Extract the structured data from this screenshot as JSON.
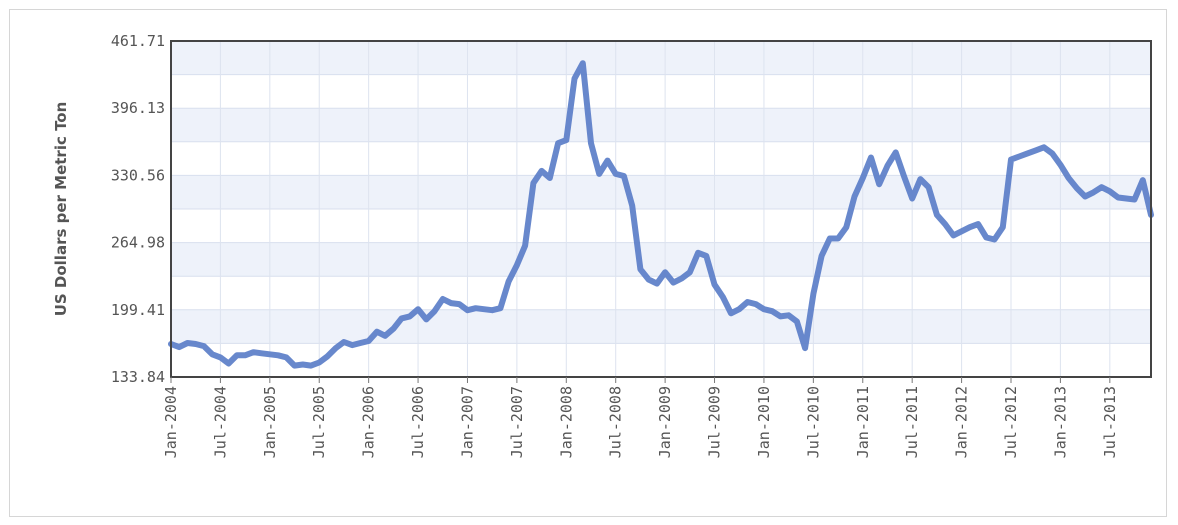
{
  "chart_data": {
    "type": "line",
    "title": "",
    "xlabel": "",
    "ylabel": "US Dollars per Metric Ton",
    "y_ticks": [
      "133.84",
      "199.41",
      "264.98",
      "330.56",
      "396.13",
      "461.71"
    ],
    "ylim": [
      133.84,
      461.71
    ],
    "x_ticks": [
      "Jan-2004",
      "Jul-2004",
      "Jan-2005",
      "Jul-2005",
      "Jan-2006",
      "Jul-2006",
      "Jan-2007",
      "Jul-2007",
      "Jan-2008",
      "Jul-2008",
      "Jan-2009",
      "Jul-2009",
      "Jan-2010",
      "Jul-2010",
      "Jan-2011",
      "Jul-2011",
      "Jan-2012",
      "Jul-2012",
      "Jan-2013",
      "Jul-2013"
    ],
    "xlim": [
      "Jan-2004",
      "Dec-2013"
    ],
    "grid": true,
    "legend": "none",
    "series": [
      {
        "color": "#5b7ec8",
        "x": [
          "Jan-2004",
          "Feb-2004",
          "Mar-2004",
          "Apr-2004",
          "May-2004",
          "Jun-2004",
          "Jul-2004",
          "Aug-2004",
          "Sep-2004",
          "Oct-2004",
          "Nov-2004",
          "Dec-2004",
          "Jan-2005",
          "Feb-2005",
          "Mar-2005",
          "Apr-2005",
          "May-2005",
          "Jun-2005",
          "Jul-2005",
          "Aug-2005",
          "Sep-2005",
          "Oct-2005",
          "Nov-2005",
          "Dec-2005",
          "Jan-2006",
          "Feb-2006",
          "Mar-2006",
          "Apr-2006",
          "May-2006",
          "Jun-2006",
          "Jul-2006",
          "Aug-2006",
          "Sep-2006",
          "Oct-2006",
          "Nov-2006",
          "Dec-2006",
          "Jan-2007",
          "Feb-2007",
          "Mar-2007",
          "Apr-2007",
          "May-2007",
          "Jun-2007",
          "Jul-2007",
          "Aug-2007",
          "Sep-2007",
          "Oct-2007",
          "Nov-2007",
          "Dec-2007",
          "Jan-2008",
          "Feb-2008",
          "Mar-2008",
          "Apr-2008",
          "May-2008",
          "Jun-2008",
          "Jul-2008",
          "Aug-2008",
          "Sep-2008",
          "Oct-2008",
          "Nov-2008",
          "Dec-2008",
          "Jan-2009",
          "Feb-2009",
          "Mar-2009",
          "Apr-2009",
          "May-2009",
          "Jun-2009",
          "Jul-2009",
          "Aug-2009",
          "Sep-2009",
          "Oct-2009",
          "Nov-2009",
          "Dec-2009",
          "Jan-2010",
          "Feb-2010",
          "Mar-2010",
          "Apr-2010",
          "May-2010",
          "Jun-2010",
          "Jul-2010",
          "Aug-2010",
          "Sep-2010",
          "Oct-2010",
          "Nov-2010",
          "Dec-2010",
          "Jan-2011",
          "Feb-2011",
          "Mar-2011",
          "Apr-2011",
          "May-2011",
          "Jun-2011",
          "Jul-2011",
          "Aug-2011",
          "Sep-2011",
          "Oct-2011",
          "Nov-2011",
          "Dec-2011",
          "Jan-2012",
          "Feb-2012",
          "Mar-2012",
          "Apr-2012",
          "May-2012",
          "Jun-2012",
          "Jul-2012",
          "Aug-2012",
          "Sep-2012",
          "Oct-2012",
          "Nov-2012",
          "Dec-2012",
          "Jan-2013",
          "Feb-2013",
          "Mar-2013",
          "Apr-2013",
          "May-2013",
          "Jun-2013",
          "Jul-2013",
          "Aug-2013",
          "Sep-2013",
          "Oct-2013",
          "Nov-2013",
          "Dec-2013"
        ],
        "values": [
          166,
          163,
          167,
          166,
          164,
          156,
          153,
          147,
          155,
          155,
          158,
          157,
          156,
          155,
          153,
          145,
          146,
          145,
          148,
          154,
          162,
          168,
          165,
          167,
          169,
          178,
          174,
          181,
          191,
          193,
          200,
          190,
          198,
          210,
          206,
          205,
          199,
          201,
          200,
          199,
          201,
          227,
          243,
          262,
          323,
          335,
          328,
          362,
          365,
          425,
          440,
          362,
          332,
          345,
          332,
          330,
          301,
          239,
          229,
          225,
          236,
          226,
          230,
          236,
          255,
          252,
          224,
          212,
          196,
          200,
          207,
          205,
          200,
          198,
          193,
          194,
          188,
          162,
          215,
          252,
          269,
          269,
          280,
          310,
          328,
          348,
          322,
          340,
          353,
          330,
          308,
          327,
          319,
          292,
          283,
          272,
          276,
          280,
          283,
          270,
          268,
          280,
          346,
          349,
          352,
          355,
          358,
          352,
          341,
          328,
          318,
          310,
          314,
          319,
          315,
          309,
          308,
          307,
          326,
          292
        ]
      }
    ]
  }
}
